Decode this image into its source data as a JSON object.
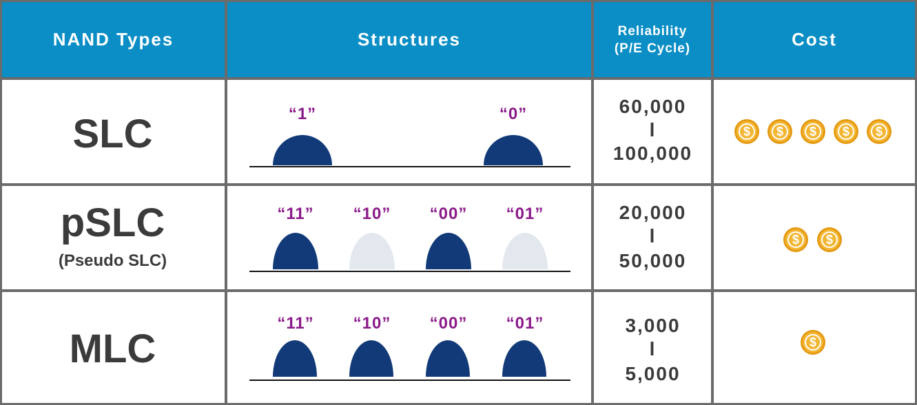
{
  "headers": {
    "type": "NAND Types",
    "structures": "Structures",
    "reliability_line1": "Reliability",
    "reliability_line2": "(P/E Cycle)",
    "cost": "Cost"
  },
  "rows": [
    {
      "name": "SLC",
      "subname": "",
      "reliability": [
        "60,000",
        "l",
        "100,000"
      ],
      "states": [
        {
          "label": "“1”",
          "active": true
        },
        {
          "label": "“0”",
          "active": true
        }
      ],
      "coins": 5
    },
    {
      "name": "pSLC",
      "subname": "(Pseudo SLC)",
      "reliability": [
        "20,000",
        "l",
        "50,000"
      ],
      "states": [
        {
          "label": "“11”",
          "active": true
        },
        {
          "label": "“10”",
          "active": false
        },
        {
          "label": "“00”",
          "active": true
        },
        {
          "label": "“01”",
          "active": false
        }
      ],
      "coins": 2
    },
    {
      "name": "MLC",
      "subname": "",
      "reliability": [
        "3,000",
        "l",
        "5,000"
      ],
      "states": [
        {
          "label": "“11”",
          "active": true
        },
        {
          "label": "“10”",
          "active": true
        },
        {
          "label": "“00”",
          "active": true
        },
        {
          "label": "“01”",
          "active": true
        }
      ],
      "coins": 1
    }
  ],
  "coin_symbol": "$",
  "colors": {
    "header_bg": "#0a8ec5",
    "grid_line": "#6b6b6b",
    "state_active": "#123a78",
    "state_inactive": "#e3e8ee",
    "label_color": "#8b1a8a",
    "coin_fill": "#f3b633",
    "coin_edge": "#e59a12"
  }
}
